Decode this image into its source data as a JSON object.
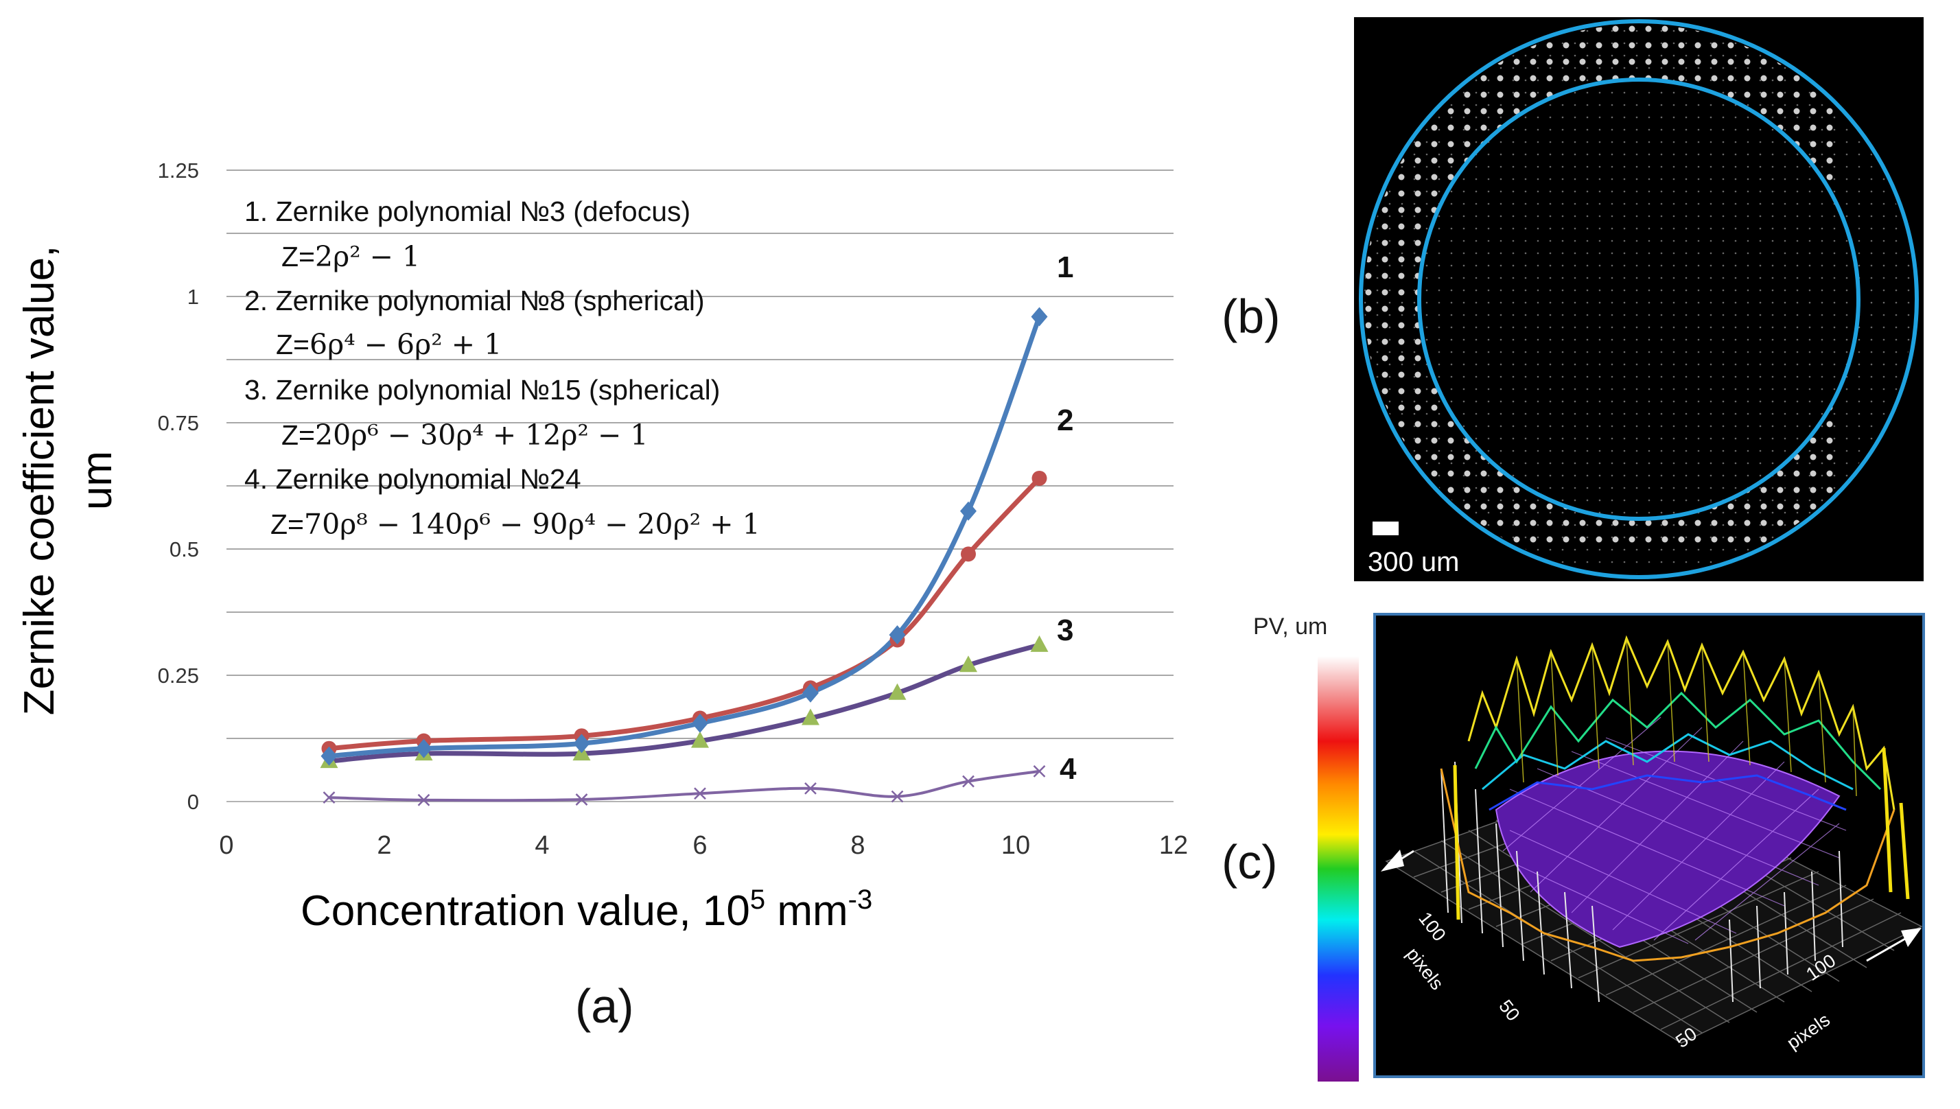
{
  "chart_data": {
    "type": "line",
    "title": "",
    "xlabel": "Concentration value, 10",
    "xlabel_sup_exp": "5",
    "xlabel_unit": " mm",
    "xlabel_unit_exp": "-3",
    "ylabel_line1": "Zernike coefficient value,",
    "ylabel_line2": "um",
    "xlim": [
      0,
      12
    ],
    "ylim": [
      0,
      1.25
    ],
    "x_ticks": [
      0,
      2,
      4,
      6,
      8,
      10,
      12
    ],
    "x_tick_labels": [
      "0",
      "2",
      "4",
      "6",
      "8",
      "10",
      "12"
    ],
    "y_ticks": [
      0,
      0.25,
      0.5,
      0.75,
      1,
      1.25
    ],
    "y_tick_labels": [
      "0",
      "0.25",
      "0.5",
      "0.75",
      "1",
      "1.25"
    ],
    "grid": "horizontal",
    "legend": [
      {
        "text": "1. Zernike polynomial №3 (defocus)",
        "formula_prefix": "Z=",
        "formula": "2ρ² − 1"
      },
      {
        "text": "2. Zernike polynomial №8 (spherical)",
        "formula_prefix": "Z=",
        "formula": "6ρ⁴ − 6ρ² + 1"
      },
      {
        "text": "3. Zernike polynomial №15 (spherical)",
        "formula_prefix": "Z=",
        "formula": "20ρ⁶ − 30ρ⁴ + 12ρ² − 1"
      },
      {
        "text": "4. Zernike polynomial №24",
        "formula_prefix": "Z=",
        "formula": "70ρ⁸ − 140ρ⁶ − 90ρ⁴ − 20ρ² + 1"
      }
    ],
    "series": [
      {
        "name": "1",
        "color": "#4a7ebb",
        "marker": "diamond",
        "x": [
          1.3,
          2.5,
          4.5,
          6.0,
          7.4,
          8.5,
          9.4,
          10.3
        ],
        "y": [
          0.09,
          0.105,
          0.115,
          0.155,
          0.215,
          0.33,
          0.575,
          0.96
        ]
      },
      {
        "name": "2",
        "color": "#c0504d",
        "marker": "circle",
        "x": [
          1.3,
          2.5,
          4.5,
          6.0,
          7.4,
          8.5,
          9.4,
          10.3
        ],
        "y": [
          0.105,
          0.12,
          0.13,
          0.165,
          0.225,
          0.32,
          0.49,
          0.64
        ]
      },
      {
        "name": "3",
        "color": "#5f4a8b",
        "marker": "triangle",
        "marker_color": "#9bbb59",
        "x": [
          1.3,
          2.5,
          4.5,
          6.0,
          7.4,
          8.5,
          9.4,
          10.3
        ],
        "y": [
          0.08,
          0.095,
          0.095,
          0.12,
          0.165,
          0.215,
          0.27,
          0.31
        ]
      },
      {
        "name": "4",
        "color": "#8064a2",
        "marker": "x",
        "x": [
          1.3,
          2.5,
          4.5,
          6.0,
          7.4,
          8.5,
          9.4,
          10.3
        ],
        "y": [
          0.008,
          0.003,
          0.004,
          0.016,
          0.026,
          0.01,
          0.04,
          0.06
        ]
      }
    ]
  },
  "panels": {
    "a": "(a)",
    "b": "(b)",
    "c": "(c)"
  },
  "panel_b": {
    "scale_bar": "300 um",
    "ring_color": "#1ea2e0"
  },
  "panel_c": {
    "colorbar_label": "PV, um",
    "axis_label_left": "pixels",
    "axis_label_right": "pixels",
    "tick_left_100": "100",
    "tick_left_50": "50",
    "tick_right_100": "100",
    "tick_right_50": "50"
  }
}
